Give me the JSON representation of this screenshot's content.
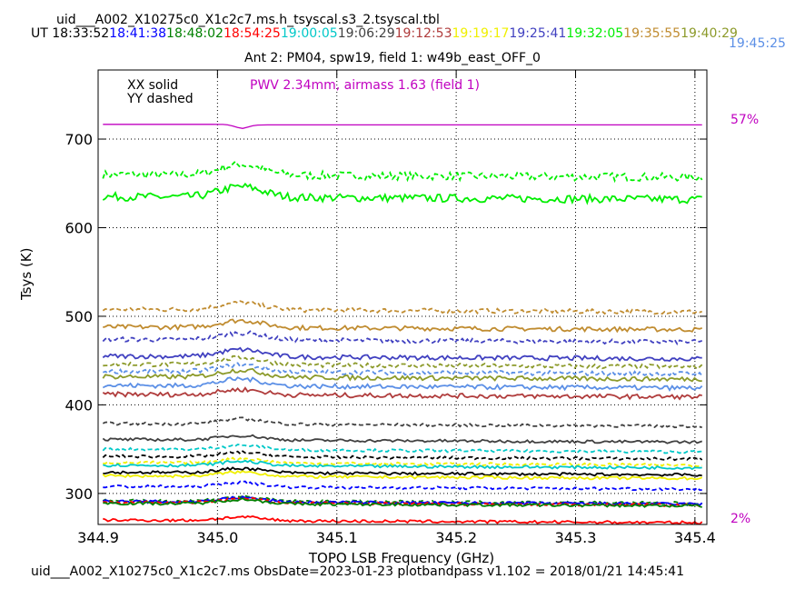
{
  "header": {
    "filename": "uid___A002_X10275c0_X1c2c7.ms.h_tsyscal.s3_2.tsyscal.tbl",
    "ut_label": "UT",
    "times": [
      {
        "text": "18:33:52",
        "color": "#000000"
      },
      {
        "text": "18:41:38",
        "color": "#0000ff"
      },
      {
        "text": "18:48:02",
        "color": "#008000"
      },
      {
        "text": "18:54:25",
        "color": "#ff0000"
      },
      {
        "text": "19:00:05",
        "color": "#00c8c8"
      },
      {
        "text": "19:06:29",
        "color": "#404040"
      },
      {
        "text": "19:12:53",
        "color": "#b03c3c"
      },
      {
        "text": "19:19:17",
        "color": "#f0f000"
      },
      {
        "text": "19:25:41",
        "color": "#4040c0"
      },
      {
        "text": "19:32:05",
        "color": "#00ee00"
      },
      {
        "text": "19:35:55",
        "color": "#c08c30"
      },
      {
        "text": "19:40:29",
        "color": "#8c9a2a"
      }
    ],
    "wrap_time": {
      "text": "19:45:25",
      "color": "#5b8fe6"
    },
    "subtitle": "Ant 2: PM04,  spw19,  field 1: w49b_east_OFF_0"
  },
  "legend": {
    "line1": "XX solid",
    "line2": "YY dashed",
    "pwv": "PWV 2.34mm, airmass 1.63 (field 1)",
    "pwv_color": "#c000c0"
  },
  "right_axis": {
    "top_label": "57%",
    "bottom_label": "2%",
    "color": "#c000c0"
  },
  "footer": "uid___A002_X10275c0_X1c2c7.ms  ObsDate=2023-01-23   plotbandpass v1.102 = 2018/01/21 14:45:41",
  "chart_data": {
    "type": "line",
    "xlabel": "TOPO LSB Frequency (GHz)",
    "ylabel": "Tsys (K)",
    "xlim": [
      344.9,
      345.41
    ],
    "ylim": [
      265,
      778
    ],
    "xticks": [
      344.9,
      345.0,
      345.1,
      345.2,
      345.3,
      345.4
    ],
    "xtick_labels": [
      "344.9",
      "345.0",
      "345.1",
      "345.2",
      "345.3",
      "345.4"
    ],
    "yticks": [
      300,
      400,
      500,
      600,
      700
    ],
    "ytick_labels": [
      "300",
      "400",
      "500",
      "600",
      "700"
    ],
    "x_start": 344.904,
    "x_end": 345.406,
    "grid": true,
    "atm_transmission": {
      "color": "#c000c0",
      "level": 716,
      "dip_at": 345.02,
      "dip_depth": 4
    },
    "series": [
      {
        "color": "#00ee00",
        "style": "dashed",
        "level": 660,
        "bump": 12
      },
      {
        "color": "#00ee00",
        "style": "solid",
        "level": 635,
        "bump": 12
      },
      {
        "color": "#c08c30",
        "style": "dashed",
        "level": 508,
        "bump": 8
      },
      {
        "color": "#c08c30",
        "style": "solid",
        "level": 488,
        "bump": 8
      },
      {
        "color": "#4040c0",
        "style": "dashed",
        "level": 474,
        "bump": 8
      },
      {
        "color": "#4040c0",
        "style": "solid",
        "level": 455,
        "bump": 8
      },
      {
        "color": "#8c9a2a",
        "style": "dashed",
        "level": 446,
        "bump": 8
      },
      {
        "color": "#5b8fe6",
        "style": "dashed",
        "level": 438,
        "bump": 8
      },
      {
        "color": "#8c9a2a",
        "style": "solid",
        "level": 432,
        "bump": 8
      },
      {
        "color": "#5b8fe6",
        "style": "solid",
        "level": 422,
        "bump": 8
      },
      {
        "color": "#b03c3c",
        "style": "solid",
        "level": 412,
        "bump": 6
      },
      {
        "color": "#404040",
        "style": "dashed",
        "level": 379,
        "bump": 6
      },
      {
        "color": "#404040",
        "style": "solid",
        "level": 361,
        "bump": 5
      },
      {
        "color": "#00c8c8",
        "style": "dashed",
        "level": 350,
        "bump": 5
      },
      {
        "color": "#000000",
        "style": "dashed",
        "level": 342,
        "bump": 5
      },
      {
        "color": "#f0f000",
        "style": "dashed",
        "level": 335,
        "bump": 5
      },
      {
        "color": "#00c8c8",
        "style": "solid",
        "level": 332,
        "bump": 5
      },
      {
        "color": "#000000",
        "style": "solid",
        "level": 324,
        "bump": 5
      },
      {
        "color": "#f0f000",
        "style": "solid",
        "level": 320,
        "bump": 5
      },
      {
        "color": "#0000ff",
        "style": "dashed",
        "level": 308,
        "bump": 5
      },
      {
        "color": "#008000",
        "style": "dashed",
        "level": 292,
        "bump": 5
      },
      {
        "color": "#0000ff",
        "style": "solid",
        "level": 291,
        "bump": 5
      },
      {
        "color": "#ff0000",
        "style": "dashed",
        "level": 290,
        "bump": 5
      },
      {
        "color": "#008000",
        "style": "solid",
        "level": 289,
        "bump": 5
      },
      {
        "color": "#ff0000",
        "style": "solid",
        "level": 270,
        "bump": 4
      }
    ]
  }
}
